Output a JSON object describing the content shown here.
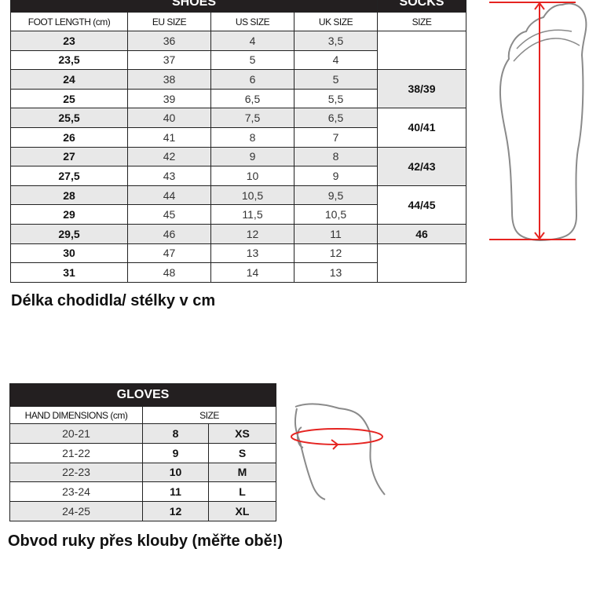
{
  "shoes_table": {
    "title": "SHOES",
    "socks_title": "SOCKS",
    "columns": [
      "FOOT LENGTH (cm)",
      "EU SIZE",
      "US SIZE",
      "UK SIZE",
      "SIZE"
    ],
    "rows": [
      {
        "foot": "23",
        "eu": "36",
        "us": "4",
        "uk": "3,5"
      },
      {
        "foot": "23,5",
        "eu": "37",
        "us": "5",
        "uk": "4"
      },
      {
        "foot": "24",
        "eu": "38",
        "us": "6",
        "uk": "5"
      },
      {
        "foot": "25",
        "eu": "39",
        "us": "6,5",
        "uk": "5,5"
      },
      {
        "foot": "25,5",
        "eu": "40",
        "us": "7,5",
        "uk": "6,5"
      },
      {
        "foot": "26",
        "eu": "41",
        "us": "8",
        "uk": "7"
      },
      {
        "foot": "27",
        "eu": "42",
        "us": "9",
        "uk": "8"
      },
      {
        "foot": "27,5",
        "eu": "43",
        "us": "10",
        "uk": "9"
      },
      {
        "foot": "28",
        "eu": "44",
        "us": "10,5",
        "uk": "9,5"
      },
      {
        "foot": "29",
        "eu": "45",
        "us": "11,5",
        "uk": "10,5"
      },
      {
        "foot": "29,5",
        "eu": "46",
        "us": "12",
        "uk": "11"
      },
      {
        "foot": "30",
        "eu": "47",
        "us": "13",
        "uk": "12"
      },
      {
        "foot": "31",
        "eu": "48",
        "us": "14",
        "uk": "13"
      }
    ],
    "socks": [
      {
        "label": "",
        "rows": 2
      },
      {
        "label": "38/39",
        "rows": 2
      },
      {
        "label": "40/41",
        "rows": 2
      },
      {
        "label": "42/43",
        "rows": 2
      },
      {
        "label": "44/45",
        "rows": 2
      },
      {
        "label": "46",
        "rows": 1
      },
      {
        "label": "",
        "rows": 2
      }
    ],
    "caption": "Délka chodidla/ stélky v cm"
  },
  "gloves_table": {
    "title": "GLOVES",
    "columns": [
      "HAND DIMENSIONS (cm)",
      "SIZE"
    ],
    "rows": [
      {
        "dim": "20-21",
        "num": "8",
        "letter": "XS"
      },
      {
        "dim": "21-22",
        "num": "9",
        "letter": "S"
      },
      {
        "dim": "22-23",
        "num": "10",
        "letter": "M"
      },
      {
        "dim": "23-24",
        "num": "11",
        "letter": "L"
      },
      {
        "dim": "24-25",
        "num": "12",
        "letter": "XL"
      }
    ],
    "caption": "Obvod ruky přes klouby (měřte obě!)"
  },
  "colors": {
    "header": "#231f20",
    "shade": "#e8e8e8",
    "measure": "#e52421"
  },
  "illustrations": [
    "foot-length-icon",
    "hand-circumference-icon"
  ]
}
